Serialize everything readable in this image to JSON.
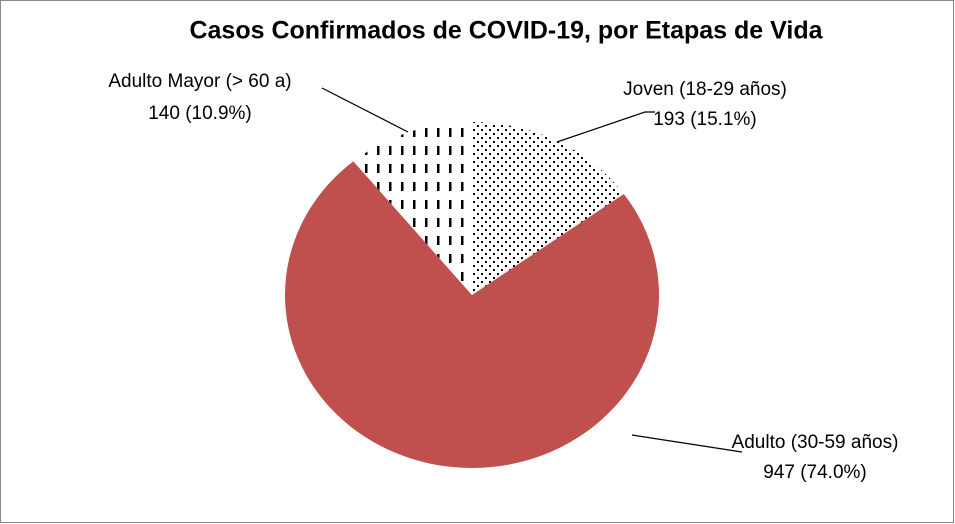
{
  "chart_data": {
    "type": "pie",
    "title": "Casos Confirmados de COVID-19, por Etapas de Vida",
    "categories": [
      "Joven (18-29 años)",
      "Adulto (30-59 años)",
      "Adulto Mayor (> 60 a)"
    ],
    "values": [
      193,
      947,
      140
    ],
    "value_labels": [
      "193 (15.1%)",
      "947 (74.0%)",
      "140 (10.9%)"
    ],
    "colors": [
      "dots",
      "#c0504d",
      "dashes"
    ]
  }
}
